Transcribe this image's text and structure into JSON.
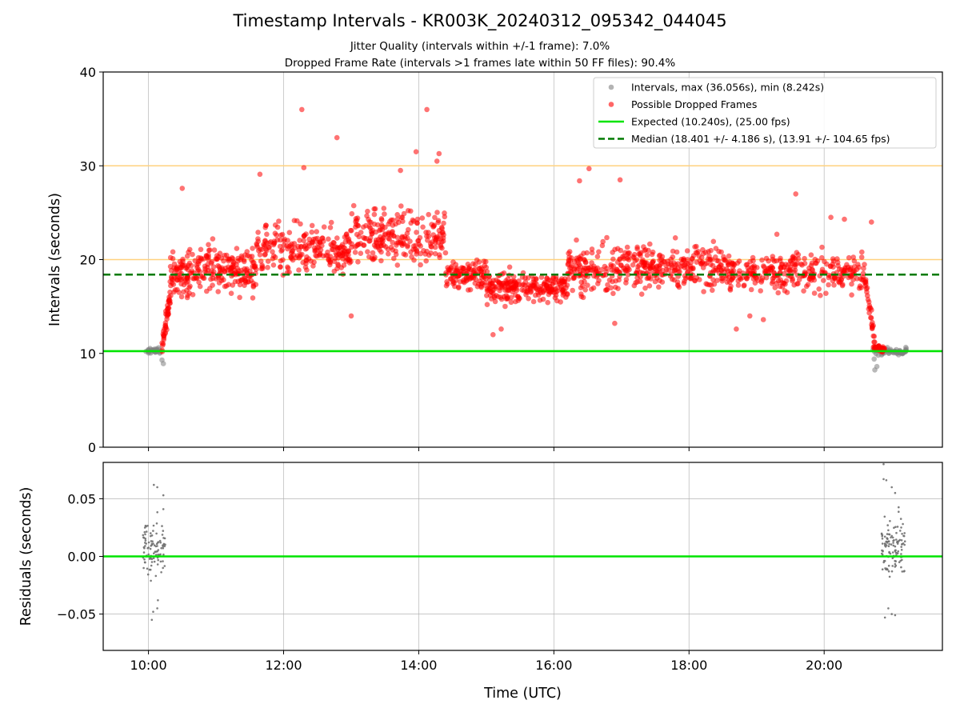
{
  "chart_data": [
    {
      "type": "scatter",
      "title": "Timestamp Intervals - KR003K_20240312_095342_044045",
      "subtitle_lines": [
        "Jitter Quality (intervals within +/-1 frame): 7.0%",
        "Dropped Frame Rate (intervals >1 frames late within 50 FF files): 90.4%"
      ],
      "xlabel": "",
      "ylabel": "Intervals (seconds)",
      "xlim": [
        9.33,
        21.75
      ],
      "ylim": [
        0,
        40
      ],
      "x_ticks": [
        10,
        12,
        14,
        16,
        18,
        20
      ],
      "y_ticks": [
        0,
        10,
        20,
        30,
        40
      ],
      "y_tick_labels": [
        "0",
        "10",
        "20",
        "30",
        "40"
      ],
      "grid": "vertical",
      "legend_position": "top-right",
      "legend": [
        {
          "label": "Intervals, max (36.056s), min (8.242s)",
          "marker": "dot",
          "color": "#808080"
        },
        {
          "label": "Possible Dropped Frames",
          "marker": "dot",
          "color": "#ff0000"
        },
        {
          "label": "Expected (10.240s), (25.00 fps)",
          "marker": "solid-line",
          "color": "#00e400"
        },
        {
          "label": "Median (18.401 +/- 4.186 s), (13.91 +/- 104.65 fps)",
          "marker": "dashed-line",
          "color": "#007a00"
        }
      ],
      "reference_lines": [
        {
          "name": "expected",
          "y": 10.24,
          "color": "#00e400",
          "style": "solid"
        },
        {
          "name": "median",
          "y": 18.401,
          "color": "#007a00",
          "style": "dashed"
        },
        {
          "name": "threshold-20",
          "y": 20,
          "color": "#ffd27f",
          "style": "solid"
        },
        {
          "name": "threshold-30",
          "y": 30,
          "color": "#ffd27f",
          "style": "solid"
        }
      ],
      "series": [
        {
          "name": "Intervals, max (36.056s), min (8.242s)",
          "color": "#808080",
          "clusters": [
            {
              "x_range": [
                9.93,
                10.22
              ],
              "y_center": 10.24,
              "y_spread": 0.25,
              "count": 30,
              "outliers": [
                [
                  10.2,
                  9.3
                ],
                [
                  10.22,
                  8.9
                ],
                [
                  10.15,
                  10.6
                ],
                [
                  10.12,
                  10.5
                ]
              ]
            },
            {
              "x_range": [
                20.72,
                21.22
              ],
              "y_center": 10.24,
              "y_spread": 0.35,
              "count": 60,
              "outliers": [
                [
                  20.75,
                  8.242
                ],
                [
                  20.78,
                  8.6
                ],
                [
                  20.74,
                  9.4
                ],
                [
                  20.8,
                  9.8
                ]
              ]
            }
          ]
        },
        {
          "name": "Possible Dropped Frames",
          "color": "#ff0000",
          "segments": [
            {
              "x_range": [
                10.2,
                10.32
              ],
              "y_from": 10.5,
              "y_to": 16,
              "spread": 1.2,
              "count": 45
            },
            {
              "x_range": [
                10.32,
                10.6
              ],
              "y_center": 18.5,
              "spread": 2.2,
              "count": 70
            },
            {
              "x_range": [
                10.6,
                11.6
              ],
              "y_center": 19.0,
              "spread": 2.4,
              "count": 190
            },
            {
              "x_range": [
                11.6,
                13.0
              ],
              "y_center": 21.0,
              "spread": 2.5,
              "count": 230
            },
            {
              "x_range": [
                13.0,
                14.4
              ],
              "y_center": 22.5,
              "spread": 2.6,
              "count": 230
            },
            {
              "x_range": [
                14.4,
                15.0
              ],
              "y_center": 18.5,
              "spread": 1.7,
              "count": 110
            },
            {
              "x_range": [
                15.0,
                16.2
              ],
              "y_center": 17.0,
              "spread": 1.5,
              "count": 230
            },
            {
              "x_range": [
                16.2,
                17.0
              ],
              "y_center": 19.0,
              "spread": 2.4,
              "count": 140
            },
            {
              "x_range": [
                17.0,
                18.6
              ],
              "y_center": 19.2,
              "spread": 2.2,
              "count": 270
            },
            {
              "x_range": [
                18.6,
                20.6
              ],
              "y_center": 18.6,
              "spread": 1.9,
              "count": 300
            },
            {
              "x_range": [
                20.6,
                20.75
              ],
              "y_from": 18.0,
              "y_to": 11.5,
              "spread": 1.0,
              "count": 30
            },
            {
              "x_range": [
                20.72,
                20.9
              ],
              "y_center": 10.5,
              "spread": 0.35,
              "count": 40
            }
          ],
          "outliers": [
            [
              12.27,
              36.0
            ],
            [
              14.12,
              36.0
            ],
            [
              12.79,
              33.0
            ],
            [
              13.96,
              31.5
            ],
            [
              14.3,
              31.3
            ],
            [
              14.27,
              30.5
            ],
            [
              12.3,
              29.8
            ],
            [
              11.65,
              29.1
            ],
            [
              13.73,
              29.5
            ],
            [
              16.52,
              29.7
            ],
            [
              16.38,
              28.4
            ],
            [
              16.98,
              28.5
            ],
            [
              19.58,
              27.0
            ],
            [
              10.5,
              27.6
            ],
            [
              13.0,
              14.0
            ],
            [
              15.1,
              12.0
            ],
            [
              15.22,
              12.6
            ],
            [
              16.9,
              13.2
            ],
            [
              18.7,
              12.6
            ],
            [
              19.1,
              13.6
            ],
            [
              18.9,
              14.0
            ],
            [
              20.1,
              24.5
            ],
            [
              20.3,
              24.3
            ],
            [
              20.7,
              24.0
            ],
            [
              19.3,
              22.7
            ]
          ]
        }
      ]
    },
    {
      "type": "scatter",
      "xlabel": "Time (UTC)",
      "ylabel": "Residuals (seconds)",
      "xlim": [
        9.33,
        21.75
      ],
      "ylim": [
        -0.0815,
        0.0815
      ],
      "x_ticks": [
        10,
        12,
        14,
        16,
        18,
        20
      ],
      "x_tick_labels": [
        "10:00",
        "12:00",
        "14:00",
        "16:00",
        "18:00",
        "20:00"
      ],
      "y_ticks": [
        -0.05,
        0,
        0.05
      ],
      "y_tick_labels": [
        "−0.05",
        "0.00",
        "0.05"
      ],
      "grid": "both",
      "reference_lines": [
        {
          "name": "zero",
          "y": 0,
          "color": "#00e400",
          "style": "solid"
        }
      ],
      "series": [
        {
          "name": "",
          "color": "#707070",
          "clusters": [
            {
              "x_range": [
                9.92,
                10.25
              ],
              "y_center": 0.008,
              "y_spread": 0.022,
              "count": 100,
              "outliers": [
                [
                  10.08,
                  0.062
                ],
                [
                  10.13,
                  0.06
                ],
                [
                  10.22,
                  0.053
                ],
                [
                  10.22,
                  0.041
                ],
                [
                  10.05,
                  -0.055
                ],
                [
                  10.13,
                  -0.045
                ],
                [
                  10.14,
                  -0.038
                ],
                [
                  10.07,
                  -0.048
                ]
              ]
            },
            {
              "x_range": [
                20.85,
                21.2
              ],
              "y_center": 0.008,
              "y_spread": 0.024,
              "count": 120,
              "outliers": [
                [
                  20.88,
                  0.08
                ],
                [
                  20.88,
                  0.067
                ],
                [
                  20.92,
                  0.066
                ],
                [
                  21.0,
                  0.06
                ],
                [
                  21.05,
                  0.055
                ],
                [
                  20.9,
                  -0.053
                ],
                [
                  21.0,
                  -0.05
                ],
                [
                  21.05,
                  -0.051
                ],
                [
                  20.95,
                  -0.045
                ]
              ]
            }
          ]
        }
      ]
    }
  ]
}
